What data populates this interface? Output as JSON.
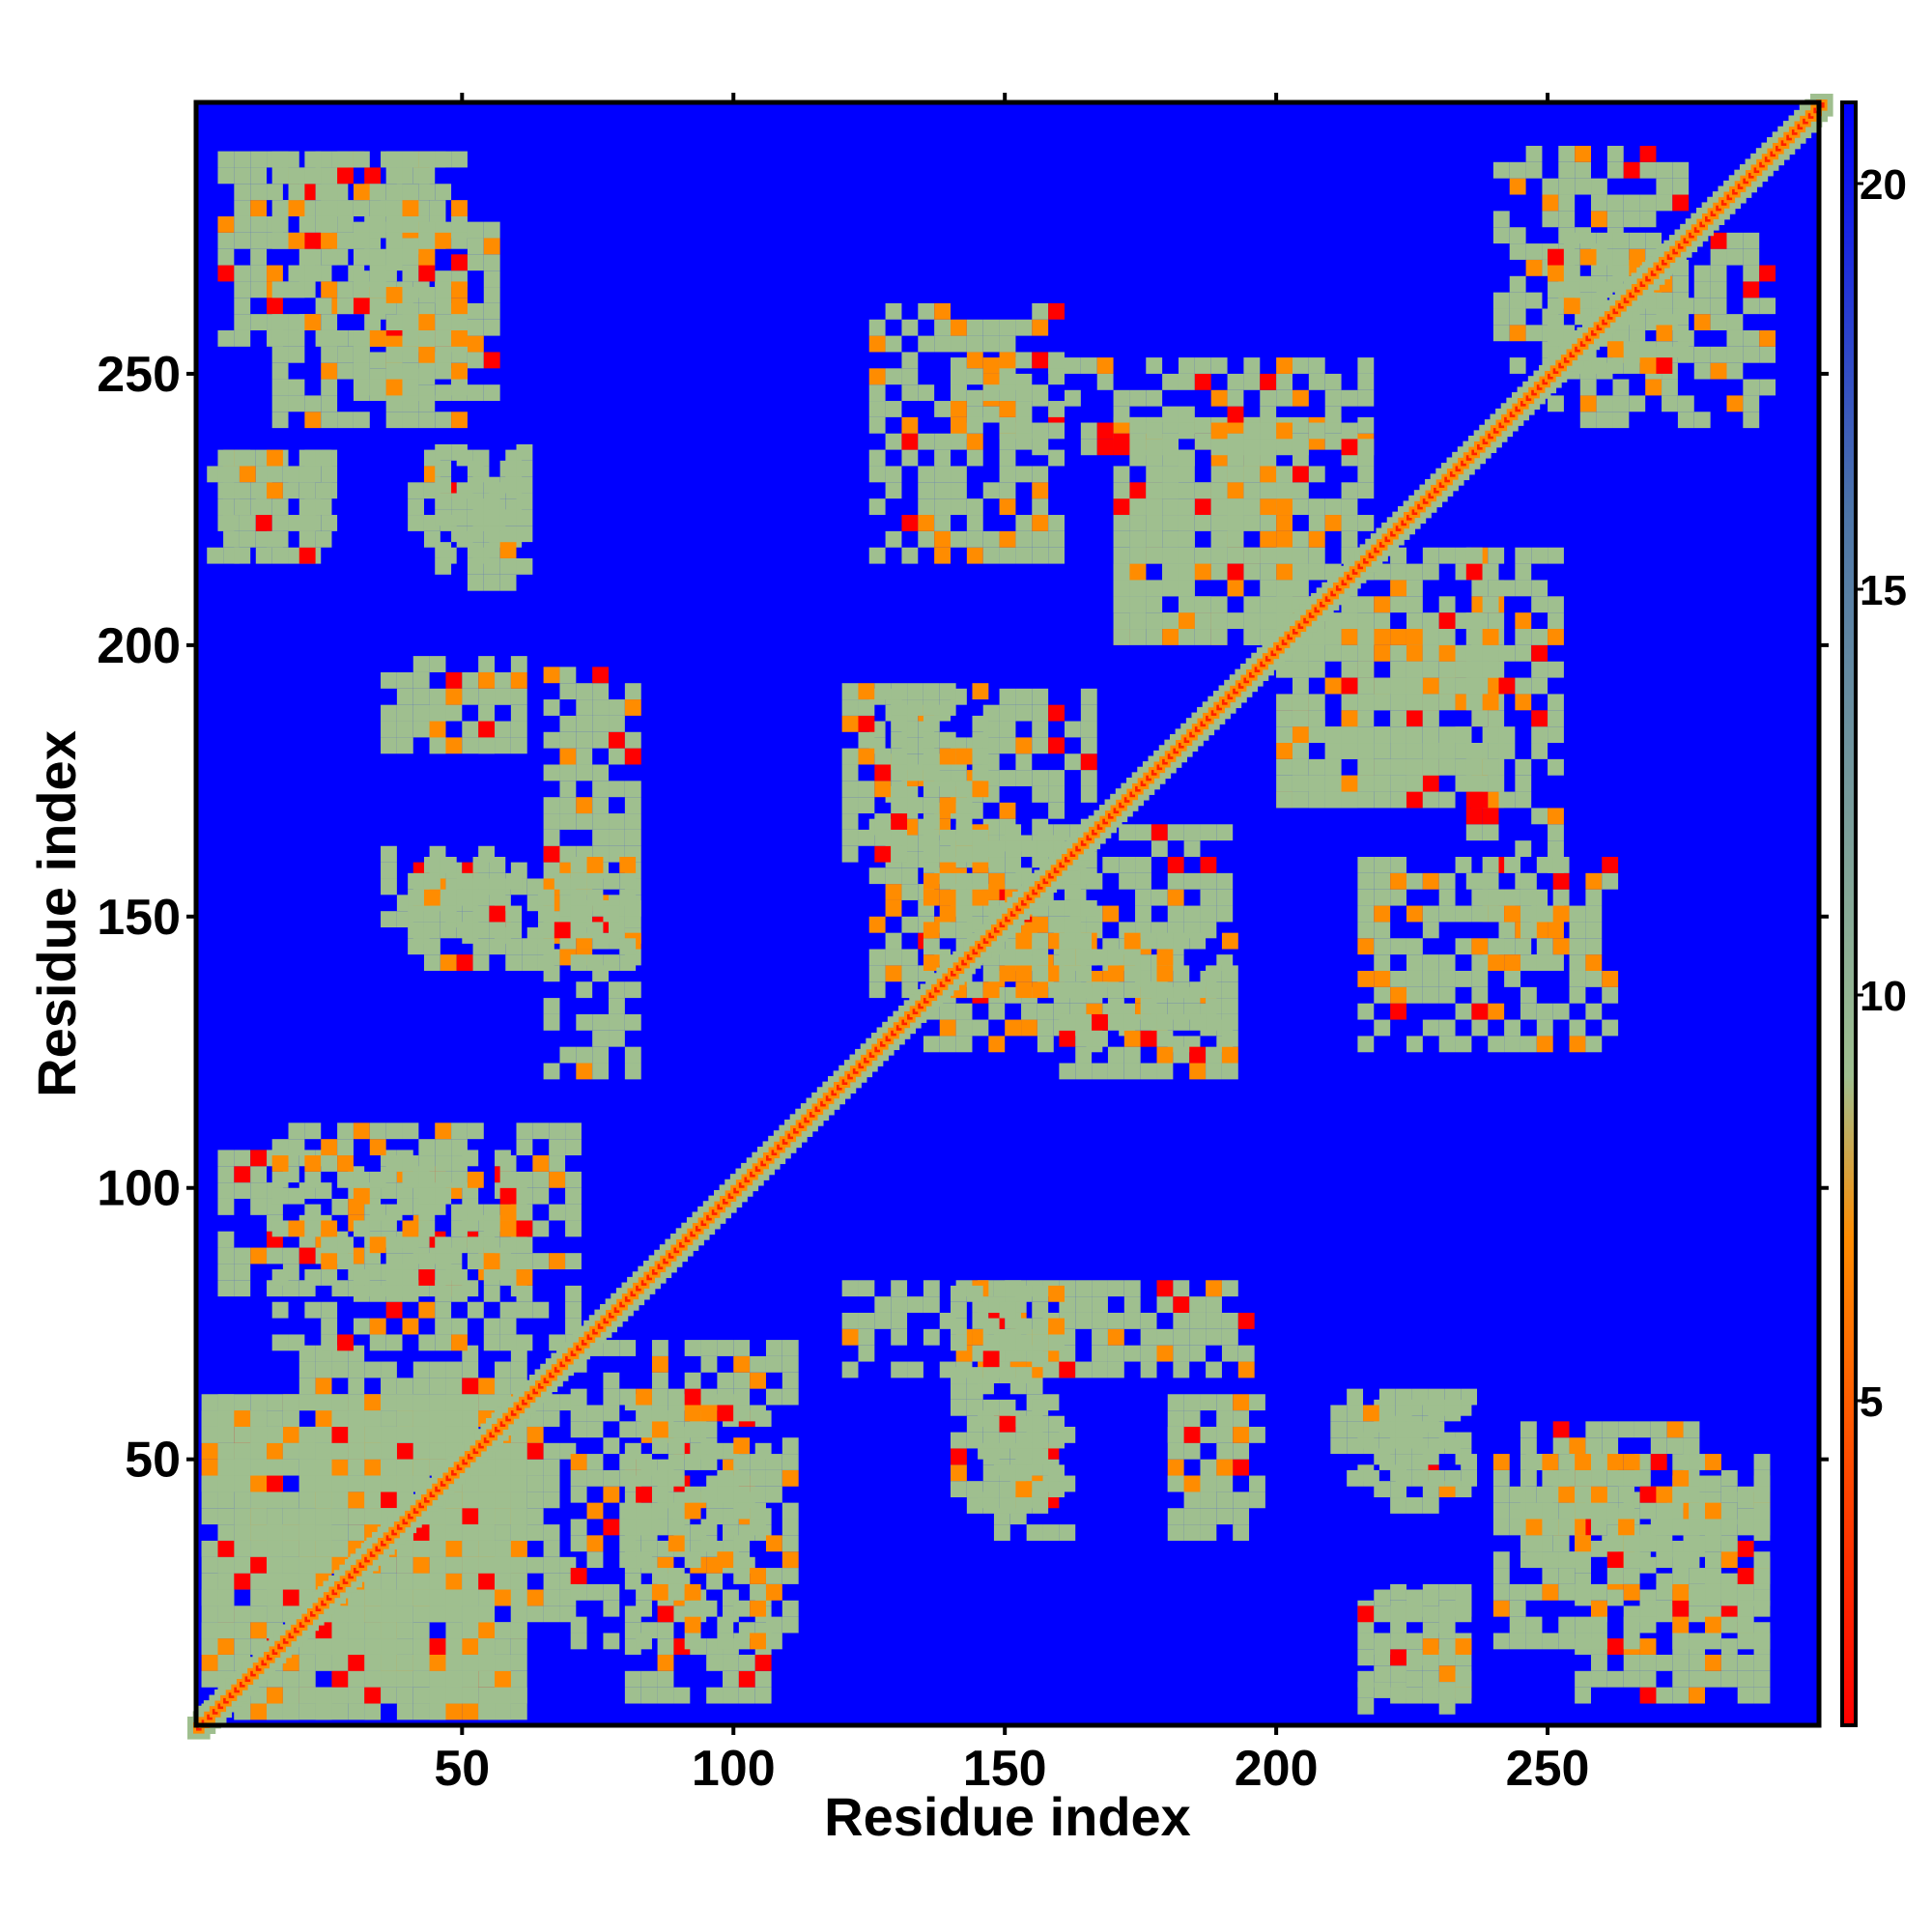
{
  "chart_data": {
    "type": "heatmap",
    "description": "Residue-residue contact/distance map",
    "xlabel": "Residue index",
    "ylabel": "Residue index",
    "xlim": [
      1,
      300
    ],
    "ylim": [
      1,
      300
    ],
    "x_ticks": [
      50,
      100,
      150,
      200,
      250
    ],
    "y_ticks": [
      50,
      100,
      150,
      200,
      250
    ],
    "colorbar": {
      "range": [
        1,
        21
      ],
      "ticks": [
        5,
        10,
        15,
        20
      ],
      "colors": [
        "#ff0000",
        "#ff8c00",
        "#9fbf8f",
        "#4c74a8",
        "#0000ff"
      ]
    },
    "background_color": "#0000ff",
    "diagonal_color": "#ff2000",
    "contact_bands": [
      {
        "x": [
          2,
          60
        ],
        "y": [
          2,
          60
        ],
        "desc": "near-diagonal band"
      },
      {
        "x": [
          5,
          45
        ],
        "y": [
          255,
          290
        ]
      },
      {
        "x": [
          30,
          55
        ],
        "y": [
          245,
          275
        ]
      },
      {
        "x": [
          3,
          25
        ],
        "y": [
          215,
          235
        ]
      },
      {
        "x": [
          40,
          60
        ],
        "y": [
          215,
          235
        ]
      },
      {
        "x": [
          35,
          60
        ],
        "y": [
          180,
          195
        ]
      },
      {
        "x": [
          35,
          70
        ],
        "y": [
          145,
          160
        ]
      },
      {
        "x": [
          65,
          80
        ],
        "y": [
          145,
          195
        ]
      },
      {
        "x": [
          5,
          60
        ],
        "y": [
          80,
          105
        ]
      },
      {
        "x": [
          5,
          70
        ],
        "y": [
          20,
          60
        ]
      },
      {
        "x": [
          70,
          110
        ],
        "y": [
          15,
          70
        ]
      },
      {
        "x": [
          120,
          150
        ],
        "y": [
          65,
          80
        ]
      },
      {
        "x": [
          140,
          160
        ],
        "y": [
          40,
          80
        ]
      },
      {
        "x": [
          180,
          190
        ],
        "y": [
          35,
          60
        ]
      },
      {
        "x": [
          210,
          235
        ],
        "y": [
          45,
          60
        ]
      },
      {
        "x": [
          215,
          235
        ],
        "y": [
          5,
          25
        ]
      },
      {
        "x": [
          240,
          290
        ],
        "y": [
          15,
          50
        ]
      },
      {
        "x": [
          125,
          165
        ],
        "y": [
          135,
          190
        ]
      },
      {
        "x": [
          160,
          190
        ],
        "y": [
          120,
          145
        ]
      },
      {
        "x": [
          170,
          200
        ],
        "y": [
          200,
          240
        ]
      },
      {
        "x": [
          200,
          240
        ],
        "y": [
          170,
          215
        ]
      },
      {
        "x": [
          235,
          250
        ],
        "y": [
          140,
          215
        ]
      },
      {
        "x": [
          240,
          275
        ],
        "y": [
          250,
          290
        ]
      },
      {
        "x": [
          125,
          160
        ],
        "y": [
          215,
          260
        ]
      }
    ]
  }
}
